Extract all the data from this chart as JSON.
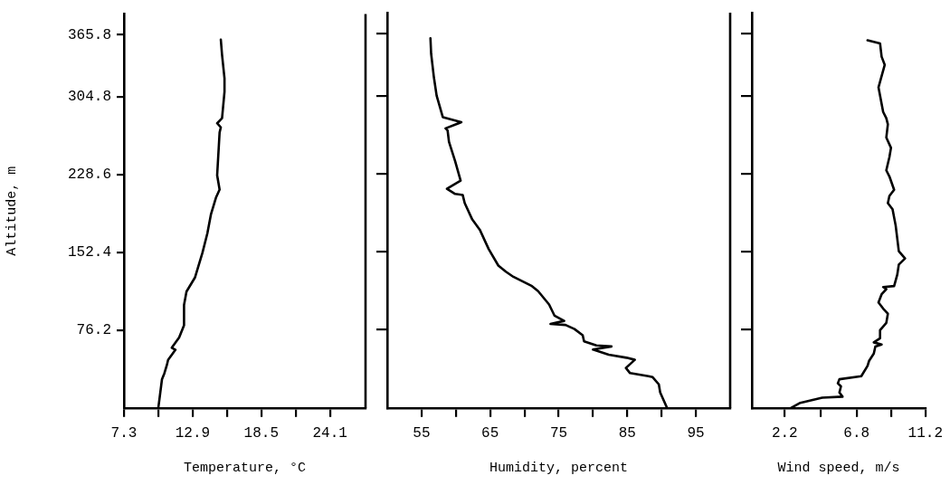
{
  "chart_data": [
    {
      "type": "line",
      "xlabel": "Temperature, °C",
      "ylabel": "Altitude, m",
      "color": "#000000",
      "marker": "none",
      "line_style": "solid",
      "x": [
        10.1,
        10.2,
        10.4,
        10.6,
        10.8,
        10.9,
        11.5,
        11.2,
        11.8,
        12.2,
        12.2,
        12.4,
        13.1,
        13.7,
        14.1,
        14.4,
        14.8,
        15.1,
        14.9,
        15.1,
        15.2,
        14.9,
        15.3,
        15.5,
        15.5,
        15.3,
        15.2
      ],
      "values": [
        0,
        9,
        28,
        34,
        42,
        47,
        57,
        59,
        69,
        81,
        101,
        114,
        128,
        152,
        171,
        190,
        206,
        214,
        228,
        270,
        275,
        279,
        284,
        310,
        323,
        346,
        361
      ],
      "xlim": [
        7.3,
        27
      ],
      "ylim": [
        0,
        386
      ],
      "xticks": [
        7.3,
        {
          "value": 10.1,
          "label": null
        },
        12.9,
        {
          "value": 15.7,
          "label": null
        },
        18.5,
        {
          "value": 21.3,
          "label": null
        },
        24.1
      ],
      "yticks": [
        76.2,
        152.4,
        228.6,
        304.8,
        365.8
      ]
    },
    {
      "type": "line",
      "xlabel": "Humidity, percent",
      "color": "#000000",
      "marker": "none",
      "line_style": "solid",
      "tick_labels": "x",
      "x": [
        90.8,
        89.8,
        89.6,
        88.7,
        88.1,
        85.4,
        84.8,
        86.1,
        84.9,
        82.3,
        80,
        82.7,
        80.5,
        78.7,
        78.5,
        77.3,
        76,
        73.8,
        75.8,
        74.4,
        73.6,
        72,
        71.1,
        68.4,
        67.3,
        66.2,
        64.8,
        63.5,
        62.4,
        61.3,
        61,
        59.9,
        58.7,
        60.7,
        59.9,
        59,
        58.8,
        58.5,
        60.8,
        58.1,
        57.2,
        56.8,
        56.4,
        56.3
      ],
      "values": [
        0,
        15,
        23,
        30,
        31,
        34,
        39,
        47,
        49,
        52,
        57,
        60,
        61,
        65,
        71,
        77,
        81,
        82,
        85,
        90,
        101,
        114,
        119,
        128,
        133,
        139,
        155,
        174,
        184,
        200,
        208,
        209,
        214,
        222,
        241,
        260,
        271,
        273,
        279,
        284,
        305,
        323,
        346,
        361
      ],
      "xlim": [
        50,
        100
      ],
      "ylim": [
        0,
        386
      ],
      "xticks": [
        55,
        {
          "value": 60,
          "label": null
        },
        65,
        {
          "value": 70,
          "label": null
        },
        75,
        {
          "value": 80,
          "label": null
        },
        85,
        {
          "value": 90,
          "label": null
        },
        95
      ],
      "yticks": [
        76.2,
        152.4,
        228.6,
        304.8,
        365.8
      ]
    },
    {
      "type": "line",
      "xlabel": "Wind speed, m/s",
      "color": "#000000",
      "marker": "none",
      "line_style": "solid",
      "tick_labels": "x",
      "x": [
        2.6,
        3.2,
        4.6,
        5.9,
        5.7,
        5.8,
        5.6,
        5.7,
        7.1,
        7.5,
        7.6,
        7.9,
        8,
        8.4,
        7.9,
        8.3,
        8.3,
        8.7,
        8.8,
        8.5,
        8.2,
        8.4,
        8.7,
        8.5,
        9.2,
        9.4,
        9.5,
        9.9,
        9.5,
        9.3,
        9.1,
        8.8,
        8.9,
        9.2,
        8.9,
        8.7,
        8.9,
        9,
        8.7,
        8.8,
        8.7,
        8.5,
        8.2,
        8.6,
        8.4,
        8.3,
        7.5
      ],
      "values": [
        0,
        5,
        10,
        11,
        15,
        21,
        24,
        28,
        31,
        41,
        46,
        53,
        60,
        62,
        64,
        68,
        76,
        83,
        92,
        97,
        103,
        111,
        116,
        118,
        119,
        130,
        140,
        146,
        153,
        178,
        194,
        200,
        207,
        213,
        226,
        232,
        245,
        254,
        264,
        277,
        283,
        289,
        313,
        335,
        343,
        356,
        359
      ],
      "xlim": [
        0.1,
        11.2
      ],
      "ylim": [
        0,
        386
      ],
      "xticks": [
        2.2,
        {
          "value": 4.5,
          "label": null
        },
        6.8,
        {
          "value": 9,
          "label": null
        },
        11.2
      ],
      "yticks": [
        76.2,
        152.4,
        228.6,
        304.8,
        365.8
      ]
    }
  ]
}
